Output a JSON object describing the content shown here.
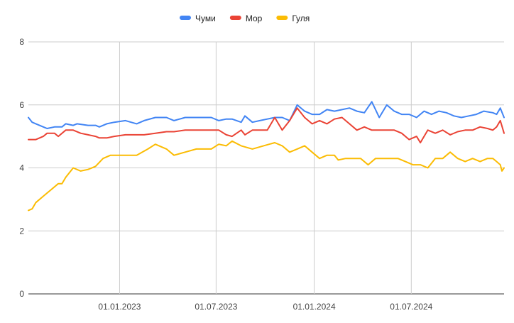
{
  "chart_data": {
    "type": "line",
    "title": "",
    "xlabel": "",
    "ylabel": "",
    "ylim": [
      0,
      8
    ],
    "yticks": [
      0,
      2,
      4,
      6,
      8
    ],
    "xlim": [
      "2022-07-14",
      "2024-12-22"
    ],
    "xticks": [
      {
        "date": "2023-01-01",
        "label": "01.01.2023"
      },
      {
        "date": "2023-07-01",
        "label": "01.07.2023"
      },
      {
        "date": "2024-01-01",
        "label": "01.01.2024"
      },
      {
        "date": "2024-07-01",
        "label": "01.07.2024"
      }
    ],
    "grid": true,
    "legend_position": "top-center",
    "series": [
      {
        "name": "Чуми",
        "color": "#4285F4",
        "points": [
          [
            "2022-07-14",
            5.6
          ],
          [
            "2022-07-21",
            5.45
          ],
          [
            "2022-07-28",
            5.4
          ],
          [
            "2022-08-11",
            5.3
          ],
          [
            "2022-08-18",
            5.25
          ],
          [
            "2022-09-01",
            5.3
          ],
          [
            "2022-09-15",
            5.3
          ],
          [
            "2022-09-22",
            5.4
          ],
          [
            "2022-10-06",
            5.35
          ],
          [
            "2022-10-13",
            5.4
          ],
          [
            "2022-11-03",
            5.35
          ],
          [
            "2022-11-17",
            5.35
          ],
          [
            "2022-11-24",
            5.3
          ],
          [
            "2022-12-08",
            5.4
          ],
          [
            "2022-12-22",
            5.45
          ],
          [
            "2023-01-12",
            5.5
          ],
          [
            "2023-02-02",
            5.4
          ],
          [
            "2023-02-16",
            5.5
          ],
          [
            "2023-03-09",
            5.6
          ],
          [
            "2023-03-30",
            5.6
          ],
          [
            "2023-04-13",
            5.5
          ],
          [
            "2023-05-04",
            5.6
          ],
          [
            "2023-05-25",
            5.6
          ],
          [
            "2023-06-08",
            5.6
          ],
          [
            "2023-06-22",
            5.6
          ],
          [
            "2023-07-06",
            5.5
          ],
          [
            "2023-07-20",
            5.55
          ],
          [
            "2023-07-31",
            5.55
          ],
          [
            "2023-08-17",
            5.45
          ],
          [
            "2023-08-24",
            5.65
          ],
          [
            "2023-09-07",
            5.45
          ],
          [
            "2023-09-21",
            5.5
          ],
          [
            "2023-10-05",
            5.55
          ],
          [
            "2023-10-19",
            5.6
          ],
          [
            "2023-11-02",
            5.6
          ],
          [
            "2023-11-16",
            5.5
          ],
          [
            "2023-11-30",
            6.0
          ],
          [
            "2023-12-14",
            5.8
          ],
          [
            "2023-12-28",
            5.7
          ],
          [
            "2024-01-11",
            5.7
          ],
          [
            "2024-01-25",
            5.85
          ],
          [
            "2024-02-08",
            5.8
          ],
          [
            "2024-02-22",
            5.85
          ],
          [
            "2024-03-07",
            5.9
          ],
          [
            "2024-03-21",
            5.8
          ],
          [
            "2024-04-04",
            5.75
          ],
          [
            "2024-04-18",
            6.1
          ],
          [
            "2024-05-02",
            5.6
          ],
          [
            "2024-05-16",
            6.0
          ],
          [
            "2024-05-30",
            5.8
          ],
          [
            "2024-06-13",
            5.7
          ],
          [
            "2024-06-27",
            5.7
          ],
          [
            "2024-07-11",
            5.6
          ],
          [
            "2024-07-25",
            5.8
          ],
          [
            "2024-08-08",
            5.7
          ],
          [
            "2024-08-22",
            5.8
          ],
          [
            "2024-09-05",
            5.75
          ],
          [
            "2024-09-19",
            5.65
          ],
          [
            "2024-10-03",
            5.6
          ],
          [
            "2024-10-17",
            5.65
          ],
          [
            "2024-10-31",
            5.7
          ],
          [
            "2024-11-14",
            5.8
          ],
          [
            "2024-12-01",
            5.75
          ],
          [
            "2024-12-08",
            5.7
          ],
          [
            "2024-12-15",
            5.9
          ],
          [
            "2024-12-22",
            5.6
          ]
        ]
      },
      {
        "name": "Мор",
        "color": "#EA4335",
        "points": [
          [
            "2022-07-14",
            4.9
          ],
          [
            "2022-07-28",
            4.9
          ],
          [
            "2022-08-11",
            5.0
          ],
          [
            "2022-08-18",
            5.1
          ],
          [
            "2022-09-01",
            5.1
          ],
          [
            "2022-09-08",
            5.0
          ],
          [
            "2022-09-22",
            5.2
          ],
          [
            "2022-10-06",
            5.2
          ],
          [
            "2022-10-20",
            5.1
          ],
          [
            "2022-11-03",
            5.05
          ],
          [
            "2022-11-17",
            5.0
          ],
          [
            "2022-11-24",
            4.95
          ],
          [
            "2022-12-08",
            4.95
          ],
          [
            "2022-12-22",
            5.0
          ],
          [
            "2023-01-12",
            5.05
          ],
          [
            "2023-02-02",
            5.05
          ],
          [
            "2023-02-16",
            5.05
          ],
          [
            "2023-03-09",
            5.1
          ],
          [
            "2023-03-30",
            5.15
          ],
          [
            "2023-04-13",
            5.15
          ],
          [
            "2023-05-04",
            5.2
          ],
          [
            "2023-05-25",
            5.2
          ],
          [
            "2023-06-08",
            5.2
          ],
          [
            "2023-06-22",
            5.2
          ],
          [
            "2023-07-06",
            5.2
          ],
          [
            "2023-07-20",
            5.05
          ],
          [
            "2023-07-31",
            5.0
          ],
          [
            "2023-08-17",
            5.2
          ],
          [
            "2023-08-24",
            5.05
          ],
          [
            "2023-09-07",
            5.2
          ],
          [
            "2023-09-21",
            5.2
          ],
          [
            "2023-10-05",
            5.2
          ],
          [
            "2023-10-19",
            5.6
          ],
          [
            "2023-11-02",
            5.2
          ],
          [
            "2023-11-16",
            5.5
          ],
          [
            "2023-11-30",
            5.9
          ],
          [
            "2023-12-14",
            5.6
          ],
          [
            "2023-12-28",
            5.4
          ],
          [
            "2024-01-11",
            5.5
          ],
          [
            "2024-01-25",
            5.4
          ],
          [
            "2024-02-08",
            5.55
          ],
          [
            "2024-02-22",
            5.6
          ],
          [
            "2024-03-07",
            5.4
          ],
          [
            "2024-03-21",
            5.2
          ],
          [
            "2024-04-04",
            5.3
          ],
          [
            "2024-04-18",
            5.2
          ],
          [
            "2024-05-02",
            5.2
          ],
          [
            "2024-05-16",
            5.2
          ],
          [
            "2024-05-30",
            5.2
          ],
          [
            "2024-06-13",
            5.1
          ],
          [
            "2024-06-27",
            4.9
          ],
          [
            "2024-07-11",
            5.0
          ],
          [
            "2024-07-18",
            4.8
          ],
          [
            "2024-08-01",
            5.2
          ],
          [
            "2024-08-15",
            5.1
          ],
          [
            "2024-08-29",
            5.2
          ],
          [
            "2024-09-12",
            5.05
          ],
          [
            "2024-09-26",
            5.15
          ],
          [
            "2024-10-10",
            5.2
          ],
          [
            "2024-10-24",
            5.2
          ],
          [
            "2024-11-07",
            5.3
          ],
          [
            "2024-11-21",
            5.25
          ],
          [
            "2024-12-01",
            5.2
          ],
          [
            "2024-12-08",
            5.3
          ],
          [
            "2024-12-15",
            5.5
          ],
          [
            "2024-12-22",
            5.1
          ]
        ]
      },
      {
        "name": "Гуля",
        "color": "#FBBC04",
        "points": [
          [
            "2022-07-14",
            2.65
          ],
          [
            "2022-07-21",
            2.7
          ],
          [
            "2022-07-28",
            2.9
          ],
          [
            "2022-08-11",
            3.1
          ],
          [
            "2022-08-25",
            3.3
          ],
          [
            "2022-09-08",
            3.5
          ],
          [
            "2022-09-15",
            3.5
          ],
          [
            "2022-09-22",
            3.7
          ],
          [
            "2022-10-06",
            4.0
          ],
          [
            "2022-10-20",
            3.9
          ],
          [
            "2022-11-03",
            3.95
          ],
          [
            "2022-11-17",
            4.05
          ],
          [
            "2022-12-01",
            4.3
          ],
          [
            "2022-12-15",
            4.4
          ],
          [
            "2022-12-29",
            4.4
          ],
          [
            "2023-01-19",
            4.4
          ],
          [
            "2023-02-02",
            4.4
          ],
          [
            "2023-02-23",
            4.6
          ],
          [
            "2023-03-09",
            4.75
          ],
          [
            "2023-03-30",
            4.6
          ],
          [
            "2023-04-13",
            4.4
          ],
          [
            "2023-05-04",
            4.5
          ],
          [
            "2023-05-25",
            4.6
          ],
          [
            "2023-06-08",
            4.6
          ],
          [
            "2023-06-22",
            4.6
          ],
          [
            "2023-07-06",
            4.75
          ],
          [
            "2023-07-20",
            4.7
          ],
          [
            "2023-07-31",
            4.85
          ],
          [
            "2023-08-17",
            4.7
          ],
          [
            "2023-09-07",
            4.6
          ],
          [
            "2023-09-28",
            4.7
          ],
          [
            "2023-10-19",
            4.8
          ],
          [
            "2023-11-02",
            4.7
          ],
          [
            "2023-11-16",
            4.5
          ],
          [
            "2023-11-30",
            4.6
          ],
          [
            "2023-12-14",
            4.7
          ],
          [
            "2023-12-28",
            4.5
          ],
          [
            "2024-01-11",
            4.3
          ],
          [
            "2024-01-25",
            4.4
          ],
          [
            "2024-02-08",
            4.4
          ],
          [
            "2024-02-15",
            4.25
          ],
          [
            "2024-02-29",
            4.3
          ],
          [
            "2024-03-14",
            4.3
          ],
          [
            "2024-03-28",
            4.3
          ],
          [
            "2024-04-11",
            4.1
          ],
          [
            "2024-04-25",
            4.3
          ],
          [
            "2024-05-09",
            4.3
          ],
          [
            "2024-05-23",
            4.3
          ],
          [
            "2024-06-06",
            4.3
          ],
          [
            "2024-06-20",
            4.2
          ],
          [
            "2024-07-04",
            4.1
          ],
          [
            "2024-07-18",
            4.1
          ],
          [
            "2024-08-01",
            4.0
          ],
          [
            "2024-08-15",
            4.3
          ],
          [
            "2024-08-29",
            4.3
          ],
          [
            "2024-09-12",
            4.5
          ],
          [
            "2024-09-26",
            4.3
          ],
          [
            "2024-10-10",
            4.2
          ],
          [
            "2024-10-24",
            4.3
          ],
          [
            "2024-11-07",
            4.2
          ],
          [
            "2024-11-21",
            4.3
          ],
          [
            "2024-12-01",
            4.3
          ],
          [
            "2024-12-08",
            4.2
          ],
          [
            "2024-12-15",
            4.1
          ],
          [
            "2024-12-18",
            3.9
          ],
          [
            "2024-12-22",
            4.0
          ]
        ]
      }
    ]
  }
}
